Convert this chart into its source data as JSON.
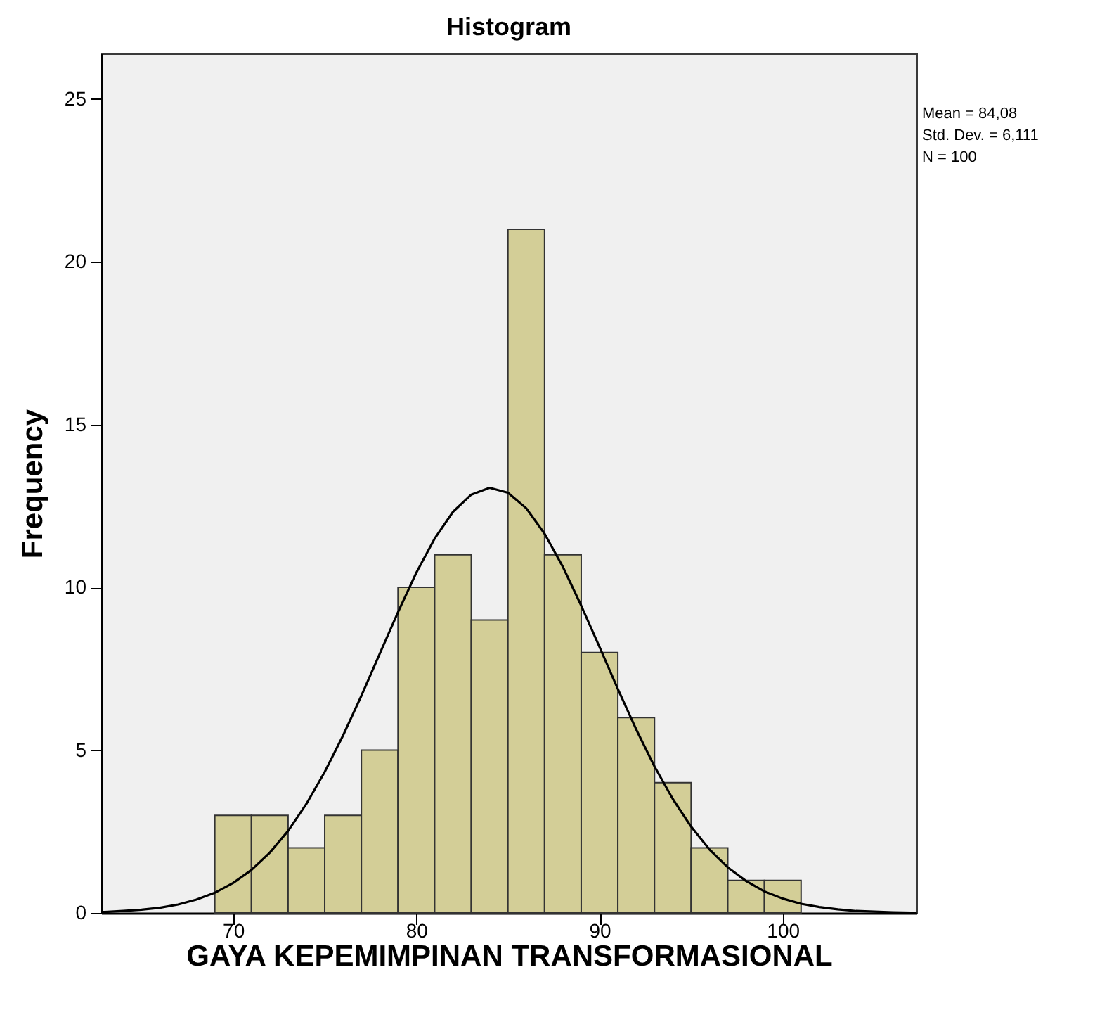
{
  "chart_data": {
    "type": "histogram",
    "title": "Histogram",
    "xlabel": "GAYA KEPEMIMPINAN TRANSFORMASIONAL",
    "ylabel": "Frequency",
    "bins": [
      69,
      71,
      73,
      75,
      77,
      79,
      81,
      83,
      85,
      87,
      89,
      91,
      93,
      95,
      97,
      99,
      101
    ],
    "series": [
      {
        "color": "#d3ce97",
        "values": [
          3,
          3,
          2,
          3,
          5,
          10,
          11,
          9,
          21,
          11,
          8,
          6,
          4,
          2,
          1,
          1
        ]
      },
      {
        "type": "line",
        "color": "#000000",
        "line_style": "solid",
        "x": [
          62.8,
          63,
          64,
          65,
          66,
          67,
          68,
          69,
          70,
          71,
          72,
          73,
          74,
          75,
          76,
          77,
          78,
          79,
          80,
          81,
          82,
          83,
          84,
          85,
          86,
          87,
          88,
          89,
          90,
          91,
          92,
          93,
          94,
          95,
          96,
          97,
          98,
          99,
          100,
          101,
          102,
          103,
          104,
          105,
          106,
          107,
          107.3
        ],
        "values": [
          0.03,
          0.03,
          0.06,
          0.1,
          0.16,
          0.26,
          0.41,
          0.62,
          0.92,
          1.32,
          1.85,
          2.52,
          3.35,
          4.33,
          5.45,
          6.67,
          7.96,
          9.24,
          10.45,
          11.5,
          12.32,
          12.85,
          13.06,
          12.91,
          12.43,
          11.65,
          10.63,
          9.44,
          8.17,
          6.88,
          5.64,
          4.5,
          3.5,
          2.65,
          1.95,
          1.4,
          0.98,
          0.66,
          0.44,
          0.28,
          0.18,
          0.11,
          0.06,
          0.04,
          0.02,
          0.01,
          0.01
        ]
      }
    ],
    "xlim": [
      62.8,
      107.3
    ],
    "xticks": [
      70,
      80,
      90,
      100
    ],
    "ylim": [
      0,
      26.4
    ],
    "yticks": [
      0,
      5,
      10,
      15,
      20,
      25
    ],
    "grid": false,
    "annotations": [
      "Mean = 84,08",
      "Std. Dev. = 6,111",
      "N = 100"
    ]
  }
}
